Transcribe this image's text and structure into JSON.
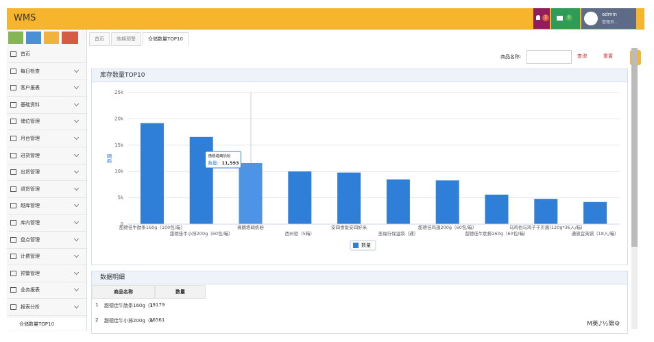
{
  "header": {
    "title": "WMS",
    "alerts": "2",
    "messages": "0",
    "user": "admin",
    "role": "管理员..."
  },
  "sidebar": {
    "items": [
      "首页",
      "每日检查",
      "客户报表",
      "基础资料",
      "储位管理",
      "月台管理",
      "进货管理",
      "出货管理",
      "退货管理",
      "越库管理",
      "库内管理",
      "盘点管理",
      "计费管理",
      "预警管理",
      "业务报表",
      "报表分析"
    ],
    "sub_item": "仓储数量TOP10"
  },
  "tabs": [
    "首页",
    "效期预警",
    "仓储数量TOP10"
  ],
  "search": {
    "label": "商品名称:",
    "query": "查询",
    "reset": "重置"
  },
  "panel_title": "库存数量TOP10",
  "chart_data": {
    "type": "bar",
    "categories": [
      "甜德佳牛肋条160g（100包/箱）",
      "甜德佳牛小排200g（60包/箱）",
      "佛朗塔崎奶粉",
      "西州密（5箱）",
      "安四食饭安四好米",
      "圣福行保温袋（通）",
      "甜德佳鸡翅200g（60包/箱）",
      "甜德佳牛肋排260g（60包/箱）",
      "乌鸡伯乌鸡子干贝酱(120g*36入/箱)",
      "通旅宜英锅（18入/箱）"
    ],
    "series": [
      {
        "name": "数量",
        "color": "#2f7ed8",
        "values": [
          19179,
          16561,
          11593,
          10000,
          9800,
          8500,
          8300,
          5600,
          4800,
          4200
        ]
      }
    ],
    "hover_color": "#4d94e6",
    "y_label": "数量",
    "ylim": [
      0,
      25000
    ],
    "yticks": [
      0,
      {
        "value": 5000,
        "label": "5k"
      },
      {
        "value": 10000,
        "label": "10k"
      },
      {
        "value": 15000,
        "label": "15k"
      },
      {
        "value": 20000,
        "label": "20k"
      },
      {
        "value": 25000,
        "label": "25k"
      }
    ],
    "grid": true,
    "tooltip": {
      "label": "数量:",
      "value": "11,593"
    }
  },
  "table": {
    "title": "数据明细",
    "columns": [
      "商品名称",
      "数量"
    ],
    "rows": [
      [
        "1",
        "甜德佳牛肋条160g（1",
        "19179"
      ],
      [
        "2",
        "甜德佳牛小排200g（6",
        "16561"
      ]
    ]
  },
  "ime": "M英♪½简⚙"
}
